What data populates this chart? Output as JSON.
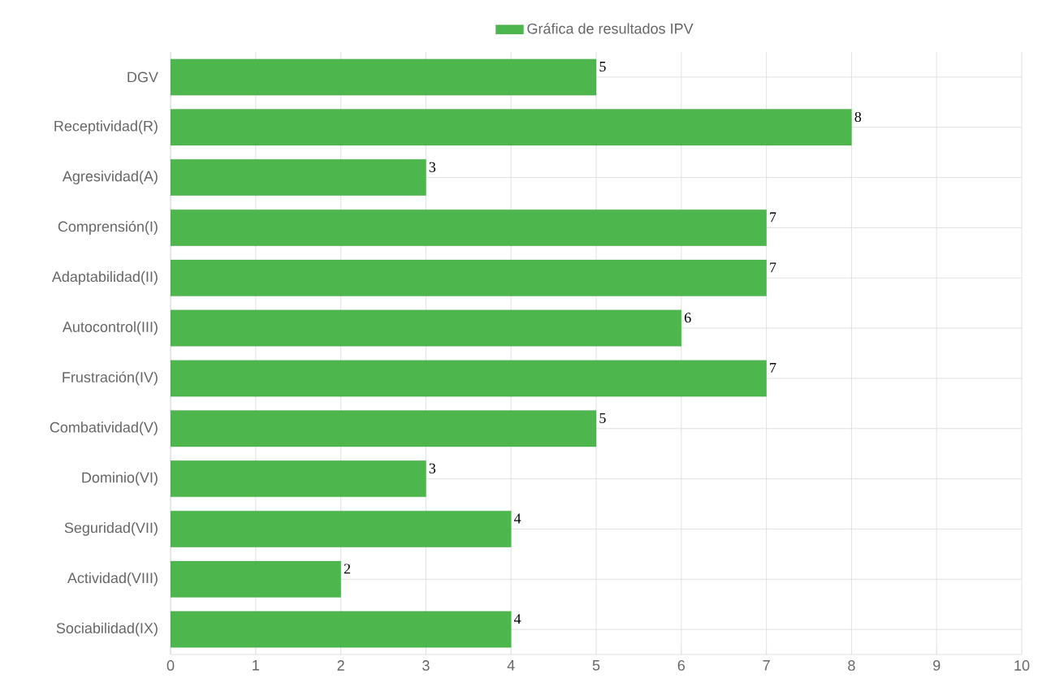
{
  "chart_data": {
    "type": "bar",
    "orientation": "horizontal",
    "categories": [
      "DGV",
      "Receptividad(R)",
      "Agresividad(A)",
      "Comprensión(I)",
      "Adaptabilidad(II)",
      "Autocontrol(III)",
      "Frustración(IV)",
      "Combatividad(V)",
      "Dominio(VI)",
      "Seguridad(VII)",
      "Actividad(VIII)",
      "Sociabilidad(IX)"
    ],
    "series": [
      {
        "name": "Gráfica de resultados IPV",
        "color": "#4db64d",
        "values": [
          5,
          8,
          3,
          7,
          7,
          6,
          7,
          5,
          3,
          4,
          2,
          4
        ]
      }
    ],
    "xlim": [
      0,
      10
    ],
    "xticks": [
      0,
      1,
      2,
      3,
      4,
      5,
      6,
      7,
      8,
      9,
      10
    ],
    "grid": true,
    "legend": "top",
    "data_labels": true
  }
}
